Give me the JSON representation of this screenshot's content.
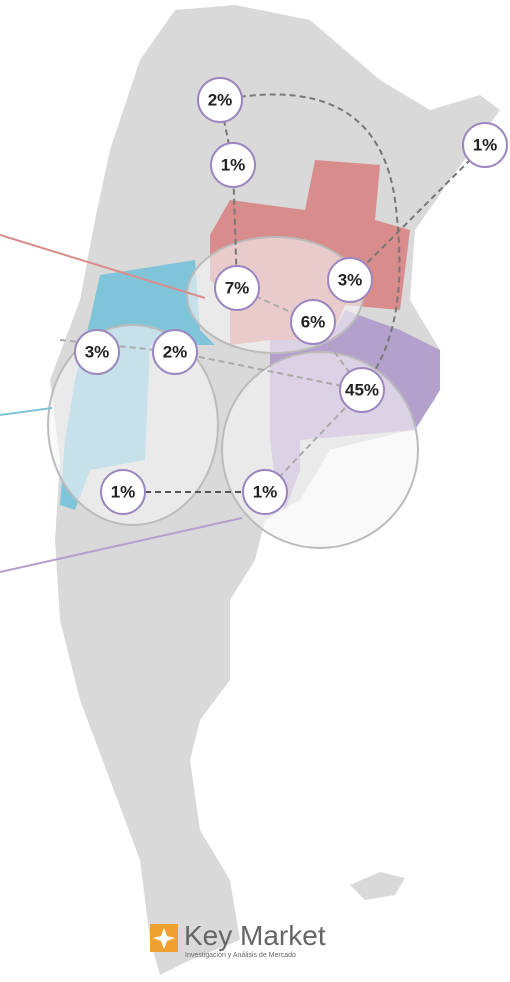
{
  "markers": [
    {
      "label": "2%"
    },
    {
      "label": "1%"
    },
    {
      "label": "1%"
    },
    {
      "label": "7%"
    },
    {
      "label": "3%"
    },
    {
      "label": "6%"
    },
    {
      "label": "3%"
    },
    {
      "label": "2%"
    },
    {
      "label": "45%"
    },
    {
      "label": "1%"
    },
    {
      "label": "1%"
    }
  ],
  "logo": {
    "name": "Key Market",
    "tagline": "Investigación y Análisis de Mercado"
  }
}
